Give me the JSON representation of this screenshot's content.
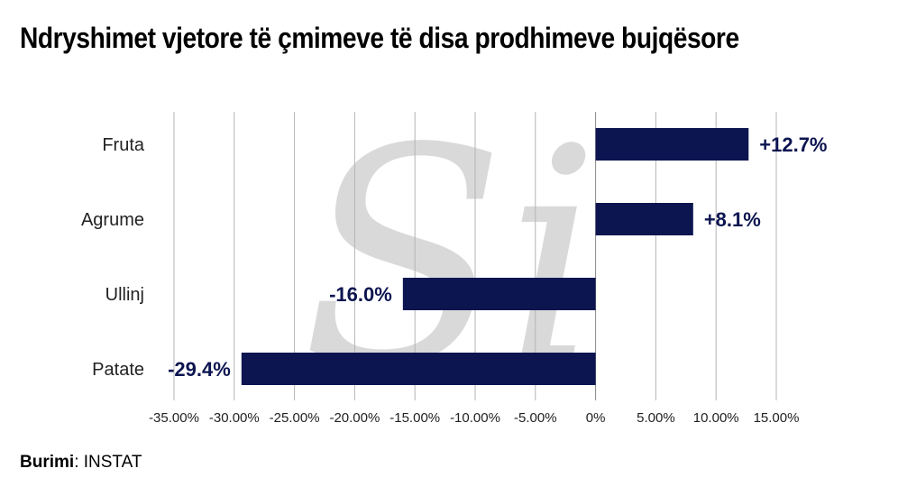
{
  "title": "Ndryshimet vjetore të çmimeve të disa prodhimeve bujqësore",
  "source": {
    "label": "Burimi",
    "separator": ":",
    "value": " INSTAT"
  },
  "colors": {
    "bar": "#0c1550",
    "grid": "#b4b4b4",
    "label": "#0c1550",
    "watermark": "#d9d9d9"
  },
  "watermark": {
    "text": "Si"
  },
  "chart_data": {
    "type": "bar",
    "orientation": "horizontal",
    "categories": [
      "Fruta",
      "Agrume",
      "Ullinj",
      "Patate"
    ],
    "values": [
      12.7,
      8.1,
      -16.0,
      -29.4
    ],
    "data_labels": [
      "+12.7%",
      "+8.1%",
      "-16.0%",
      "-29.4%"
    ],
    "xlim": [
      -35,
      15
    ],
    "xticks": [
      -35,
      -30,
      -25,
      -20,
      -15,
      -10,
      -5,
      0,
      5,
      10,
      15
    ],
    "xtick_labels": [
      "-35.00%",
      "-30.00%",
      "-25.00%",
      "-20.00%",
      "-15.00%",
      "-10.00%",
      "-5.00%",
      "0%",
      "5.00%",
      "10.00%",
      "15.00%"
    ],
    "grid": true,
    "xlabel": "",
    "ylabel": ""
  }
}
